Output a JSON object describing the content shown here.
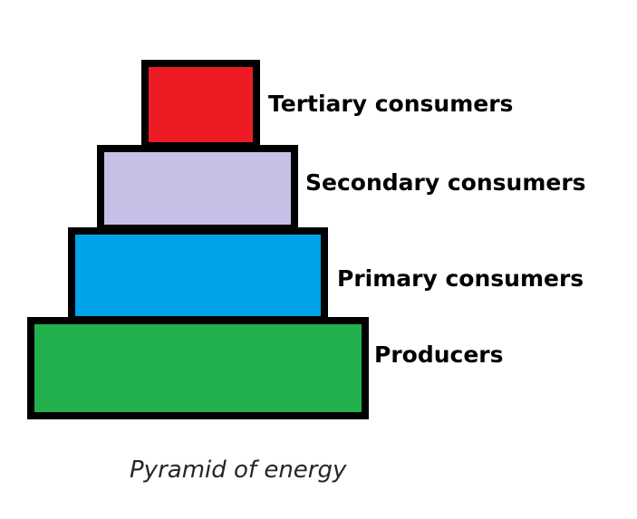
{
  "pyramid": {
    "tiers": [
      {
        "label": "Tertiary consumers",
        "color": "#ed1c24"
      },
      {
        "label": "Secondary consumers",
        "color": "#c8bfe7"
      },
      {
        "label": "Primary consumers",
        "color": "#00a2e8"
      },
      {
        "label": "Producers",
        "color": "#22b14c"
      }
    ],
    "outline_color": "#000000"
  },
  "caption": "Pyramid of energy"
}
